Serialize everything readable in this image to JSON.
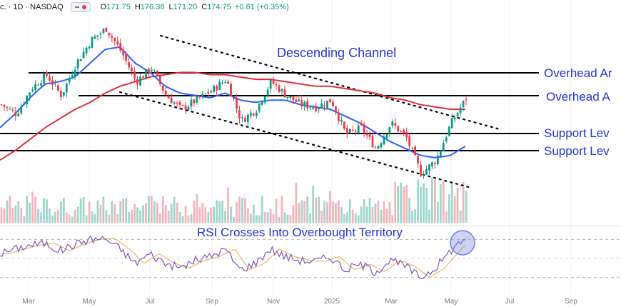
{
  "header": {
    "symbol_prefix": "c. · 1D · NASDAQ",
    "o_label": "O",
    "o_val": "171.75",
    "h_label": "H",
    "h_val": "176.38",
    "l_label": "L",
    "l_val": "171.20",
    "c_label": "C",
    "c_val": "174.75",
    "change": "+0.61 (+0.35%)"
  },
  "chart_data": {
    "type": "line",
    "annotations": {
      "channel": "Descending Channel",
      "overhead_1": "Overhead Ar",
      "overhead_2": "Overhead A",
      "support_1": "Support Lev",
      "support_2": "Support Lev",
      "rsi": "RSI Crosses Into Overbought Territory"
    },
    "x_tick_labels": [
      "Mar",
      "May",
      "Jul",
      "Sep",
      "Nov",
      "2025",
      "Mar",
      "May",
      "Jul",
      "Sep"
    ],
    "series": [
      {
        "values": [
          172,
          168,
          179,
          185,
          176,
          190,
          200,
          205,
          195,
          182,
          188,
          176,
          170,
          174,
          178,
          183,
          165,
          170,
          182,
          176,
          172,
          171,
          174,
          159,
          162,
          153,
          164,
          158,
          142,
          148,
          164,
          174.75
        ]
      },
      {
        "values": [
          162,
          168,
          175,
          181,
          182,
          184,
          190,
          196,
          197,
          190,
          186,
          180,
          177,
          176,
          175,
          177,
          174,
          173,
          174,
          174,
          172,
          171,
          170,
          167,
          164,
          160,
          156,
          153,
          150,
          149,
          150,
          154
        ]
      },
      {
        "values": [
          148,
          152,
          157,
          162,
          166,
          170,
          173,
          177,
          180,
          182,
          184,
          185,
          186,
          186,
          185,
          185,
          184,
          183,
          183,
          182,
          181,
          180,
          180,
          179,
          178,
          177,
          175,
          174,
          172,
          171,
          170,
          170
        ]
      }
    ],
    "rsi": [
      55,
      60,
      64,
      66,
      58,
      65,
      70,
      71,
      60,
      45,
      55,
      45,
      40,
      48,
      52,
      60,
      38,
      45,
      60,
      52,
      48,
      47,
      52,
      38,
      44,
      36,
      48,
      42,
      30,
      40,
      58,
      72
    ],
    "colors": {
      "price_up": "#089981",
      "price_down": "#f23645",
      "sma_short": "#2962ff",
      "sma_long": "#e0303a",
      "rsi": "#7e57c2",
      "rsi_ma": "#f0b75a",
      "annotation": "#2233dd",
      "highlight": "#6f7fe0"
    }
  }
}
